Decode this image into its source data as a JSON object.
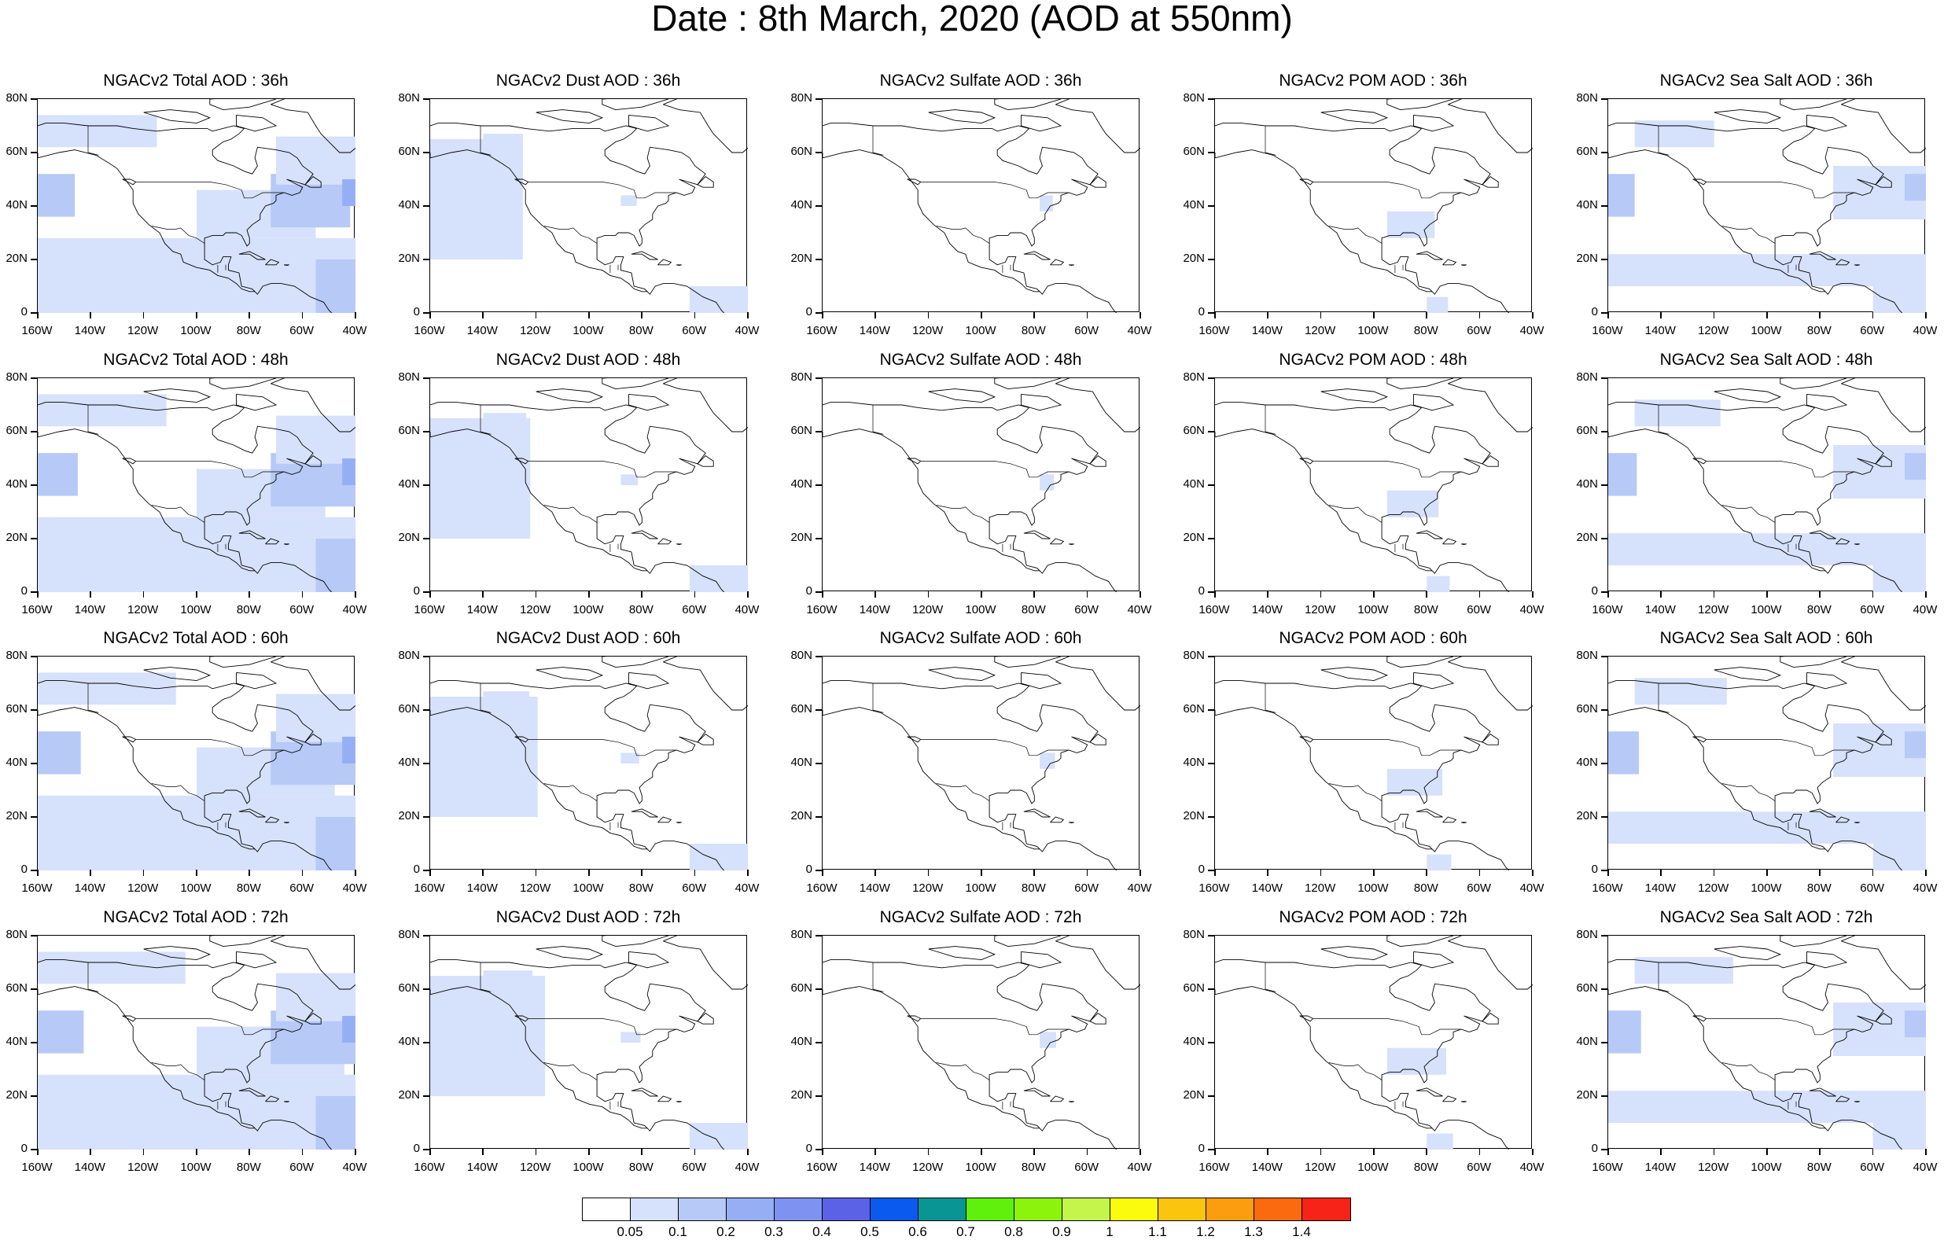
{
  "title": "Date : 8th March, 2020 (AOD at 550nm)",
  "y_axis_labels": [
    "80N",
    "60N",
    "40N",
    "20N",
    "0"
  ],
  "x_axis_labels": [
    "160W",
    "140W",
    "120W",
    "100W",
    "80W",
    "60W",
    "40W"
  ],
  "map_extent": {
    "lon": [
      -160,
      -40
    ],
    "lat": [
      0,
      80
    ]
  },
  "panel_titles": [
    [
      "NGACv2 Total AOD : 36h",
      "NGACv2 Dust AOD : 36h",
      "NGACv2 Sulfate AOD : 36h",
      "NGACv2 POM AOD : 36h",
      "NGACv2 Sea Salt AOD : 36h"
    ],
    [
      "NGACv2 Total AOD : 48h",
      "NGACv2 Dust AOD : 48h",
      "NGACv2 Sulfate AOD : 48h",
      "NGACv2 POM AOD : 48h",
      "NGACv2 Sea Salt AOD : 48h"
    ],
    [
      "NGACv2 Total AOD : 60h",
      "NGACv2 Dust AOD : 60h",
      "NGACv2 Sulfate AOD : 60h",
      "NGACv2 POM AOD : 60h",
      "NGACv2 Sea Salt AOD : 60h"
    ],
    [
      "NGACv2 Total AOD : 72h",
      "NGACv2 Dust AOD : 72h",
      "NGACv2 Sulfate AOD : 72h",
      "NGACv2 POM AOD : 72h",
      "NGACv2 Sea Salt  AOD : 72h"
    ]
  ],
  "colorbar": {
    "labels": [
      "0.05",
      "0.1",
      "0.2",
      "0.3",
      "0.4",
      "0.5",
      "0.6",
      "0.7",
      "0.8",
      "0.9",
      "1",
      "1.1",
      "1.2",
      "1.3",
      "1.4"
    ],
    "colors": [
      "#ffffff",
      "#d6e1fb",
      "#b7c9f7",
      "#96aff4",
      "#7e93f1",
      "#5b62e6",
      "#0a5aef",
      "#0a9595",
      "#5ff00c",
      "#8cf40c",
      "#c4f54a",
      "#fbfb0e",
      "#fbc50e",
      "#fb9d0e",
      "#fb6a0e",
      "#f72318"
    ]
  },
  "colors": {
    "land_outline": "#000000",
    "aod_light": "#d6e1fb",
    "aod_mid": "#b7c9f7",
    "aod_high": "#96aff4"
  },
  "aod_patches": {
    "total": [
      {
        "lon": -160,
        "lat": 36,
        "w": 14,
        "h": 16,
        "c": 2
      },
      {
        "lon": -160,
        "lat": 0,
        "w": 120,
        "h": 28,
        "c": 1
      },
      {
        "lon": -125,
        "lat": 10,
        "w": 40,
        "h": 15,
        "c": 1
      },
      {
        "lon": -100,
        "lat": 28,
        "w": 45,
        "h": 18,
        "c": 1
      },
      {
        "lon": -72,
        "lat": 32,
        "w": 30,
        "h": 20,
        "c": 2
      },
      {
        "lon": -55,
        "lat": 0,
        "w": 15,
        "h": 20,
        "c": 2
      },
      {
        "lon": -160,
        "lat": 62,
        "w": 45,
        "h": 12,
        "c": 1
      },
      {
        "lon": -70,
        "lat": 48,
        "w": 30,
        "h": 18,
        "c": 1
      },
      {
        "lon": -45,
        "lat": 40,
        "w": 5,
        "h": 10,
        "c": 3
      }
    ],
    "dust": [
      {
        "lon": -160,
        "lat": 20,
        "w": 35,
        "h": 45,
        "c": 1
      },
      {
        "lon": -140,
        "lat": 55,
        "w": 15,
        "h": 12,
        "c": 1
      },
      {
        "lon": -62,
        "lat": 0,
        "w": 22,
        "h": 10,
        "c": 1
      },
      {
        "lon": -88,
        "lat": 40,
        "w": 6,
        "h": 4,
        "c": 1
      }
    ],
    "sulfate": [
      {
        "lon": -78,
        "lat": 38,
        "w": 5,
        "h": 6,
        "c": 1
      }
    ],
    "pom": [
      {
        "lon": -95,
        "lat": 28,
        "w": 18,
        "h": 10,
        "c": 1
      },
      {
        "lon": -80,
        "lat": 0,
        "w": 8,
        "h": 6,
        "c": 1
      }
    ],
    "seasalt": [
      {
        "lon": -160,
        "lat": 36,
        "w": 10,
        "h": 16,
        "c": 2
      },
      {
        "lon": -160,
        "lat": 10,
        "w": 120,
        "h": 12,
        "c": 1
      },
      {
        "lon": -75,
        "lat": 35,
        "w": 35,
        "h": 20,
        "c": 1
      },
      {
        "lon": -60,
        "lat": 0,
        "w": 20,
        "h": 14,
        "c": 1
      },
      {
        "lon": -150,
        "lat": 62,
        "w": 30,
        "h": 10,
        "c": 1
      },
      {
        "lon": -48,
        "lat": 42,
        "w": 8,
        "h": 10,
        "c": 2
      }
    ]
  }
}
